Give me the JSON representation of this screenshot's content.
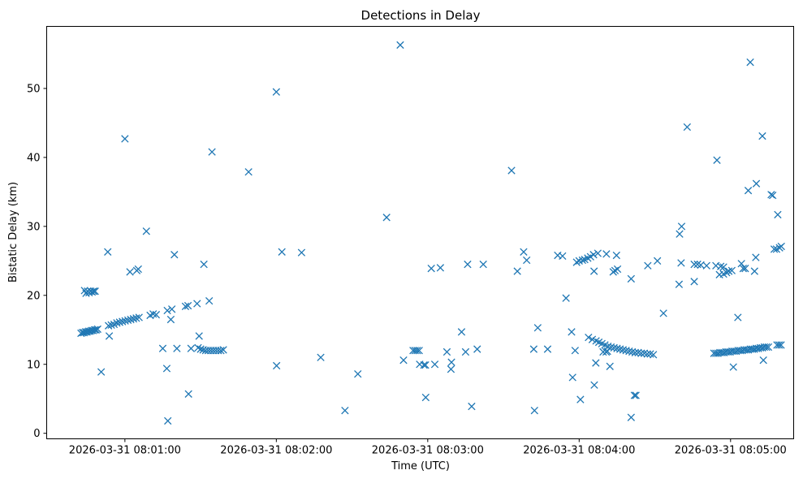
{
  "chart_data": {
    "type": "scatter",
    "title": "Detections in Delay",
    "xlabel": "Time (UTC)",
    "ylabel": "Bistatic Delay (km)",
    "marker": "x",
    "color": "#1f77b4",
    "x_unit": "seconds after 2026-03-31 08:00:00 UTC",
    "xlim": [
      29,
      325
    ],
    "ylim": [
      -0.8,
      59
    ],
    "grid": false,
    "x_ticks": [
      {
        "value": 60,
        "label": "2026-03-31 08:01:00"
      },
      {
        "value": 120,
        "label": "2026-03-31 08:02:00"
      },
      {
        "value": 180,
        "label": "2026-03-31 08:03:00"
      },
      {
        "value": 240,
        "label": "2026-03-31 08:04:00"
      },
      {
        "value": 300,
        "label": "2026-03-31 08:05:00"
      }
    ],
    "y_ticks": [
      {
        "value": 0,
        "label": "0"
      },
      {
        "value": 10,
        "label": "10"
      },
      {
        "value": 20,
        "label": "20"
      },
      {
        "value": 30,
        "label": "30"
      },
      {
        "value": 40,
        "label": "40"
      },
      {
        "value": 50,
        "label": "50"
      }
    ],
    "points": [
      [
        42.6,
        14.5
      ],
      [
        43.2,
        14.6
      ],
      [
        43.8,
        14.6
      ],
      [
        44.4,
        14.7
      ],
      [
        45,
        14.7
      ],
      [
        45.6,
        14.8
      ],
      [
        46.2,
        14.8
      ],
      [
        46.8,
        14.9
      ],
      [
        47.4,
        14.9
      ],
      [
        48,
        15
      ],
      [
        48.6,
        15
      ],
      [
        49.2,
        15.1
      ],
      [
        44,
        20.7
      ],
      [
        44.6,
        20.3
      ],
      [
        45.2,
        20.6
      ],
      [
        45.8,
        20.4
      ],
      [
        46.4,
        20.6
      ],
      [
        47,
        20.5
      ],
      [
        47.6,
        20.6
      ],
      [
        48.2,
        20.6
      ],
      [
        50.6,
        8.9
      ],
      [
        53.2,
        26.3
      ],
      [
        53.8,
        14.1
      ],
      [
        53.5,
        15.6
      ],
      [
        54.6,
        15.7
      ],
      [
        55.7,
        15.8
      ],
      [
        56.8,
        16
      ],
      [
        57.9,
        16.1
      ],
      [
        59,
        16.2
      ],
      [
        60.1,
        16.3
      ],
      [
        61.2,
        16.4
      ],
      [
        62.3,
        16.5
      ],
      [
        63.4,
        16.6
      ],
      [
        64.5,
        16.7
      ],
      [
        65.6,
        16.8
      ],
      [
        60,
        42.7
      ],
      [
        62,
        23.4
      ],
      [
        64.7,
        23.6
      ],
      [
        65.3,
        23.8
      ],
      [
        68.5,
        29.3
      ],
      [
        70,
        17.1
      ],
      [
        71.2,
        17.3
      ],
      [
        72.4,
        17.2
      ],
      [
        75,
        12.3
      ],
      [
        77,
        1.8
      ],
      [
        76.6,
        9.4
      ],
      [
        76.8,
        17.8
      ],
      [
        78.2,
        16.5
      ],
      [
        78.6,
        18
      ],
      [
        79.6,
        25.9
      ],
      [
        80.6,
        12.3
      ],
      [
        84,
        18.4
      ],
      [
        85,
        18.5
      ],
      [
        85.2,
        5.7
      ],
      [
        86.2,
        12.3
      ],
      [
        88.6,
        18.8
      ],
      [
        89.4,
        14.1
      ],
      [
        89,
        12.4
      ],
      [
        90,
        12.2
      ],
      [
        91,
        12.1
      ],
      [
        92,
        12
      ],
      [
        93,
        12
      ],
      [
        94,
        12
      ],
      [
        95,
        12
      ],
      [
        96,
        12
      ],
      [
        97,
        12
      ],
      [
        98,
        12
      ],
      [
        99,
        12.1
      ],
      [
        91.3,
        24.5
      ],
      [
        93.4,
        19.2
      ],
      [
        94.5,
        40.8
      ],
      [
        109,
        37.9
      ],
      [
        120,
        49.5
      ],
      [
        120.1,
        9.8
      ],
      [
        122.2,
        26.3
      ],
      [
        130,
        26.2
      ],
      [
        137.6,
        11
      ],
      [
        147.2,
        3.3
      ],
      [
        152.3,
        8.6
      ],
      [
        163.7,
        31.3
      ],
      [
        169.1,
        56.3
      ],
      [
        170.4,
        10.6
      ],
      [
        174.2,
        12
      ],
      [
        175,
        12
      ],
      [
        175.8,
        12
      ],
      [
        176.6,
        12
      ],
      [
        176.8,
        10
      ],
      [
        178.5,
        9.9
      ],
      [
        179.1,
        9.9
      ],
      [
        179.2,
        5.2
      ],
      [
        181.4,
        23.9
      ],
      [
        182.8,
        10
      ],
      [
        185,
        24
      ],
      [
        187.6,
        11.8
      ],
      [
        189.2,
        9.3
      ],
      [
        189.4,
        10.3
      ],
      [
        193.4,
        14.7
      ],
      [
        195,
        11.8
      ],
      [
        195.8,
        24.5
      ],
      [
        197.4,
        3.9
      ],
      [
        199.6,
        12.2
      ],
      [
        202,
        24.5
      ],
      [
        213.2,
        38.1
      ],
      [
        218,
        26.3
      ],
      [
        219.2,
        25.1
      ],
      [
        215.5,
        23.5
      ],
      [
        222,
        12.2
      ],
      [
        222.3,
        3.3
      ],
      [
        223.6,
        15.3
      ],
      [
        227.5,
        12.2
      ],
      [
        231.5,
        25.8
      ],
      [
        233.4,
        25.7
      ],
      [
        234.8,
        19.6
      ],
      [
        237,
        14.7
      ],
      [
        237.4,
        8.1
      ],
      [
        238.4,
        12
      ],
      [
        239,
        24.8
      ],
      [
        240.5,
        4.9
      ],
      [
        240,
        25
      ],
      [
        241.3,
        25.1
      ],
      [
        242.2,
        25.2
      ],
      [
        243.4,
        25.4
      ],
      [
        244.5,
        25.6
      ],
      [
        245.7,
        25.9
      ],
      [
        247.4,
        26.1
      ],
      [
        250.8,
        26
      ],
      [
        245.9,
        23.5
      ],
      [
        243.7,
        13.9
      ],
      [
        245.2,
        13.6
      ],
      [
        246.7,
        13.4
      ],
      [
        247.8,
        13.2
      ],
      [
        249,
        13
      ],
      [
        250.2,
        12.8
      ],
      [
        251.4,
        12.6
      ],
      [
        252.6,
        12.5
      ],
      [
        253.8,
        12.4
      ],
      [
        255,
        12.3
      ],
      [
        256.2,
        12.2
      ],
      [
        257.4,
        12.1
      ],
      [
        258.6,
        12
      ],
      [
        259.8,
        11.9
      ],
      [
        261,
        11.8
      ],
      [
        262.2,
        11.7
      ],
      [
        263.4,
        11.7
      ],
      [
        264.6,
        11.6
      ],
      [
        265.8,
        11.6
      ],
      [
        267,
        11.5
      ],
      [
        268.2,
        11.5
      ],
      [
        269.4,
        11.4
      ],
      [
        246,
        7
      ],
      [
        246.6,
        10.2
      ],
      [
        249.5,
        11.8
      ],
      [
        250.7,
        11.8
      ],
      [
        251.2,
        11.9
      ],
      [
        252.2,
        9.7
      ],
      [
        253.5,
        23.4
      ],
      [
        254.2,
        23.6
      ],
      [
        255.2,
        23.8
      ],
      [
        254.8,
        25.8
      ],
      [
        260.6,
        22.4
      ],
      [
        260.6,
        2.3
      ],
      [
        261.9,
        5.5
      ],
      [
        262.5,
        5.5
      ],
      [
        267.2,
        24.3
      ],
      [
        271,
        25
      ],
      [
        273.4,
        17.4
      ],
      [
        279.6,
        21.6
      ],
      [
        279.8,
        28.9
      ],
      [
        280.4,
        24.7
      ],
      [
        280.6,
        30
      ],
      [
        282.8,
        44.4
      ],
      [
        285.6,
        22
      ],
      [
        285.6,
        24.5
      ],
      [
        286.9,
        24.5
      ],
      [
        288.2,
        24.4
      ],
      [
        290.5,
        24.3
      ],
      [
        293.4,
        11.6
      ],
      [
        294.2,
        11.6
      ],
      [
        295,
        11.6
      ],
      [
        295.8,
        11.7
      ],
      [
        296.6,
        11.7
      ],
      [
        297.4,
        11.7
      ],
      [
        298.2,
        11.8
      ],
      [
        299,
        11.8
      ],
      [
        299.8,
        11.8
      ],
      [
        300.6,
        11.9
      ],
      [
        301.4,
        11.9
      ],
      [
        302.2,
        11.9
      ],
      [
        303,
        12
      ],
      [
        303.8,
        12
      ],
      [
        304.6,
        12
      ],
      [
        305.4,
        12.1
      ],
      [
        306.2,
        12.1
      ],
      [
        307,
        12.1
      ],
      [
        307.8,
        12.2
      ],
      [
        308.6,
        12.2
      ],
      [
        309.4,
        12.2
      ],
      [
        310.2,
        12.3
      ],
      [
        311,
        12.3
      ],
      [
        311.8,
        12.4
      ],
      [
        312.6,
        12.4
      ],
      [
        313.4,
        12.5
      ],
      [
        314.2,
        12.5
      ],
      [
        315,
        12.5
      ],
      [
        294.6,
        39.6
      ],
      [
        294.2,
        24.3
      ],
      [
        295.6,
        23
      ],
      [
        296.1,
        24.2
      ],
      [
        297.2,
        24.1
      ],
      [
        297.2,
        23.1
      ],
      [
        298.4,
        23.3
      ],
      [
        299.3,
        23.5
      ],
      [
        300.5,
        23.6
      ],
      [
        301.1,
        9.6
      ],
      [
        302.9,
        16.8
      ],
      [
        304.3,
        24.6
      ],
      [
        305,
        23.9
      ],
      [
        305.8,
        23.9
      ],
      [
        307,
        35.2
      ],
      [
        307.8,
        53.8
      ],
      [
        310.2,
        36.2
      ],
      [
        309.5,
        23.5
      ],
      [
        310,
        25.5
      ],
      [
        312.6,
        43.1
      ],
      [
        313,
        10.6
      ],
      [
        316.1,
        34.6
      ],
      [
        316.7,
        34.5
      ],
      [
        317.3,
        26.7
      ],
      [
        318.2,
        26.7
      ],
      [
        318.7,
        31.7
      ],
      [
        319.4,
        26.9
      ],
      [
        320.1,
        27.1
      ],
      [
        318.4,
        12.8
      ],
      [
        319.2,
        12.8
      ],
      [
        320,
        12.8
      ]
    ]
  }
}
